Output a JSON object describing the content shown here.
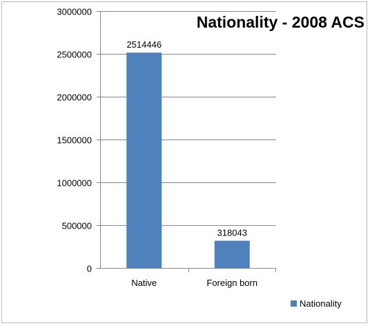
{
  "chart_data": {
    "type": "bar",
    "title": "Nationality - 2008 ACS",
    "categories": [
      "Native",
      "Foreign born"
    ],
    "series": [
      {
        "name": "Nationality",
        "values": [
          2514446,
          318043
        ],
        "color": "#4f81bd"
      }
    ],
    "data_labels": [
      "2514446",
      "318043"
    ],
    "ylim": [
      0,
      3000000
    ],
    "y_ticks": [
      0,
      500000,
      1000000,
      1500000,
      2000000,
      2500000,
      3000000
    ],
    "y_tick_labels": [
      "0",
      "500000",
      "1000000",
      "1500000",
      "2000000",
      "2500000",
      "3000000"
    ],
    "grid": true,
    "legend_position": "bottom-right"
  }
}
